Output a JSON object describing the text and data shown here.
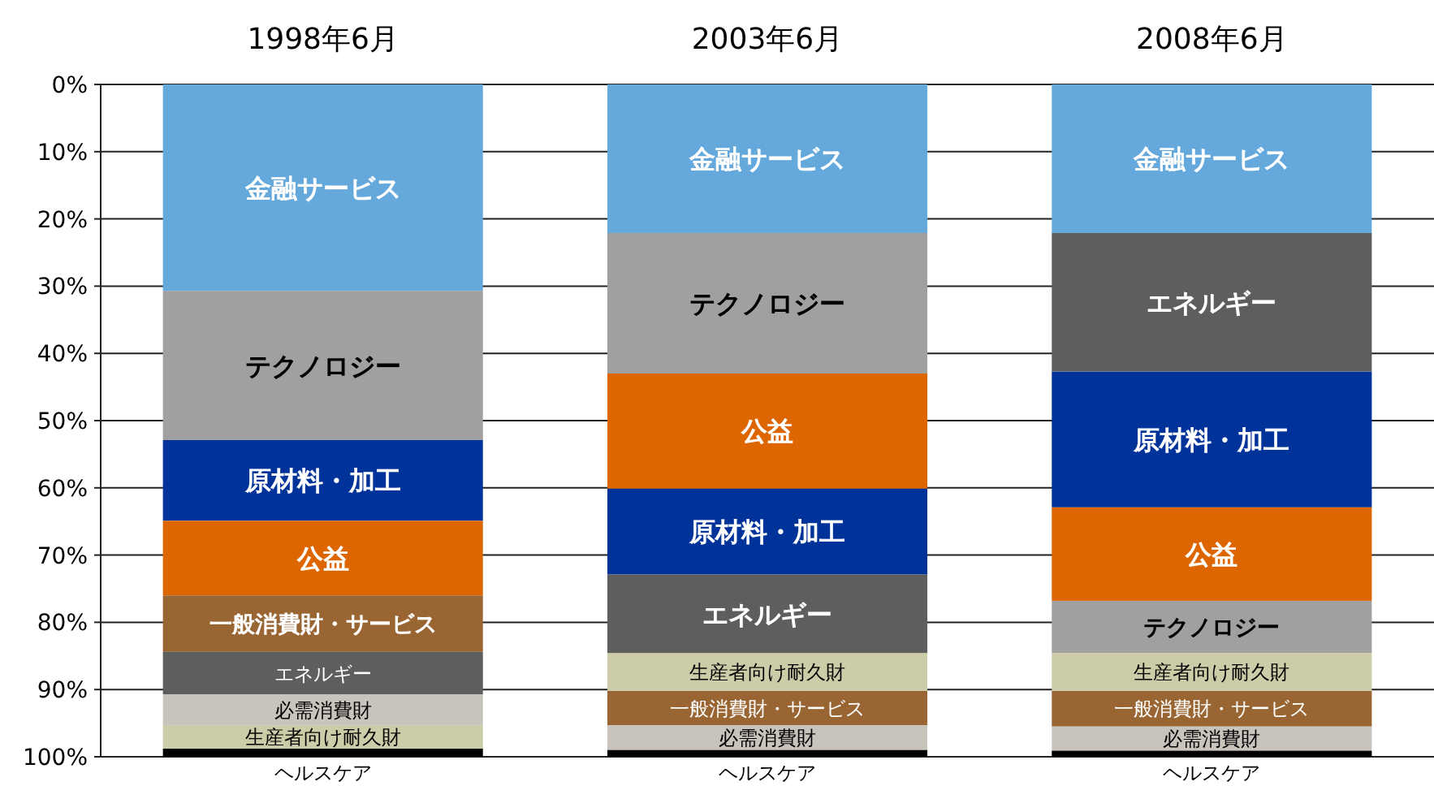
{
  "chart_data": {
    "type": "bar",
    "stacked": false,
    "categories": [
      "1998年6月",
      "2003年6月",
      "2008年6月"
    ],
    "ylim": [
      100,
      0
    ],
    "yticks": [
      {
        "value": 0,
        "label": "0%"
      },
      {
        "value": 10,
        "label": "10%"
      },
      {
        "value": 20,
        "label": "20%"
      },
      {
        "value": 30,
        "label": "30%"
      },
      {
        "value": 40,
        "label": "40%"
      },
      {
        "value": 50,
        "label": "50%"
      },
      {
        "value": 60,
        "label": "60%"
      },
      {
        "value": 70,
        "label": "70%"
      },
      {
        "value": 80,
        "label": "80%"
      },
      {
        "value": 90,
        "label": "90%"
      },
      {
        "value": 100,
        "label": "100%"
      }
    ],
    "grid": "y",
    "series": [
      {
        "name": "金融サービス",
        "color": "#65a9dc",
        "values": [
          30.7,
          22.1,
          22.1
        ],
        "base": [
          0,
          0,
          0
        ]
      },
      {
        "name": "テクノロジー",
        "color": "#a0a0a0",
        "values": [
          22.2,
          20.9,
          7.8
        ],
        "base": [
          30.7,
          22.1,
          76.8
        ]
      },
      {
        "name": "原材料・加工",
        "color": "#003399",
        "values": [
          12.0,
          12.8,
          20.2
        ],
        "base": [
          52.9,
          60.1,
          42.7
        ]
      },
      {
        "name": "公益",
        "color": "#dd6600",
        "values": [
          11.1,
          17.1,
          13.9
        ],
        "base": [
          64.9,
          43.0,
          62.9
        ]
      },
      {
        "name": "一般消費財・サービス",
        "color": "#996633",
        "values": [
          8.4,
          5.1,
          5.3
        ],
        "base": [
          76.0,
          90.2,
          90.2
        ]
      },
      {
        "name": "エネルギー",
        "color": "#5e5e5e",
        "values": [
          6.3,
          11.7,
          20.6
        ],
        "base": [
          84.4,
          72.9,
          22.1
        ]
      },
      {
        "name": "必需消費財",
        "color": "#c8c4bc",
        "values": [
          4.6,
          3.7,
          3.6
        ],
        "base": [
          90.7,
          95.3,
          95.5
        ]
      },
      {
        "name": "生産者向け耐久財",
        "color": "#cccca8",
        "values": [
          3.5,
          5.6,
          5.6
        ],
        "base": [
          95.3,
          84.6,
          84.6
        ]
      },
      {
        "name": "ヘルスケア",
        "color": "#000000",
        "values": [
          1.2,
          1.0,
          0.9
        ],
        "base": [
          98.8,
          99.0,
          99.1
        ]
      }
    ]
  }
}
